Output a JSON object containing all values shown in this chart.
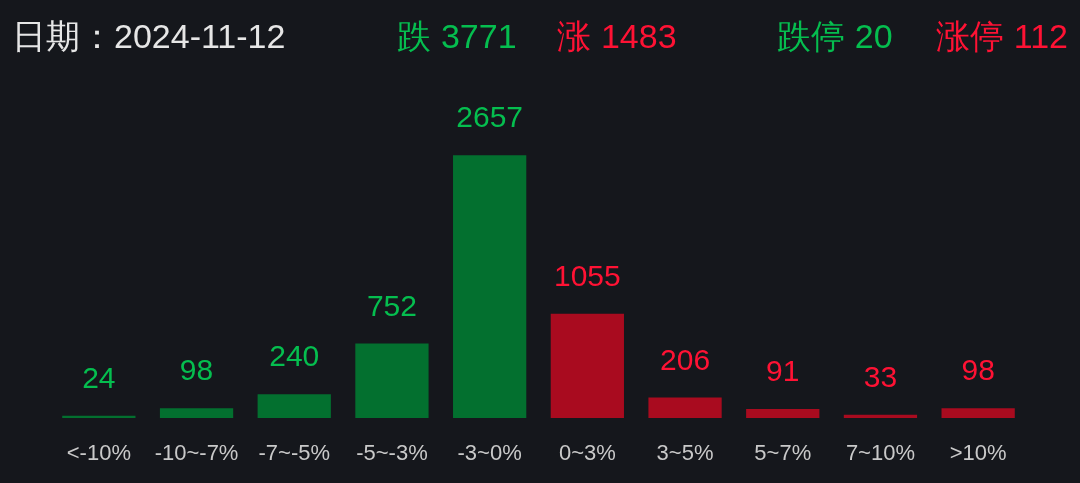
{
  "chart_data": {
    "type": "bar",
    "title": "日期：2024-11-12",
    "annotations": [
      "跌 3771",
      "涨 1483",
      "跌停 20",
      "涨停 112"
    ],
    "categories": [
      "<-10%",
      "-10~-7%",
      "-7~-5%",
      "-5~-3%",
      "-3~0%",
      "0~3%",
      "3~5%",
      "5~7%",
      "7~10%",
      ">10%"
    ],
    "values": [
      24,
      98,
      240,
      752,
      2657,
      1055,
      206,
      91,
      33,
      98
    ],
    "colors": [
      "#03702f",
      "#03702f",
      "#03702f",
      "#03702f",
      "#03702f",
      "#a90b1f",
      "#a90b1f",
      "#a90b1f",
      "#a90b1f",
      "#a90b1f"
    ],
    "data_labels": true,
    "tick_labels": "x"
  }
}
